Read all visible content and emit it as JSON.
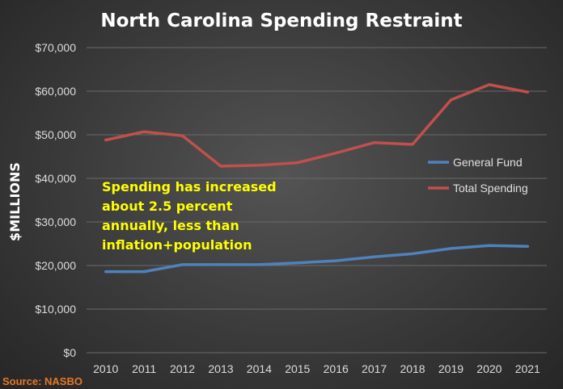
{
  "chart_data": {
    "type": "line",
    "title": "North Carolina Spending Restraint",
    "ylabel": "$MILLIONS",
    "xlabel": "",
    "x": [
      "2010",
      "2011",
      "2012",
      "2013",
      "2014",
      "2015",
      "2016",
      "2017",
      "2018",
      "2019",
      "2020",
      "2021"
    ],
    "ylim": [
      0,
      70000
    ],
    "yticks": [
      0,
      10000,
      20000,
      30000,
      40000,
      50000,
      60000,
      70000
    ],
    "ytick_labels": [
      "$0",
      "$10,000",
      "$20,000",
      "$30,000",
      "$40,000",
      "$50,000",
      "$60,000",
      "$70,000"
    ],
    "grid": true,
    "legend_position": "right",
    "series": [
      {
        "name": "General Fund",
        "color": "#4f81bd",
        "values": [
          18600,
          18600,
          20200,
          20200,
          20200,
          20600,
          21100,
          22000,
          22700,
          23900,
          24600,
          24400
        ]
      },
      {
        "name": "Total Spending",
        "color": "#c0504d",
        "values": [
          48800,
          50700,
          49800,
          42800,
          43000,
          43600,
          45800,
          48200,
          47800,
          58000,
          61500,
          59800
        ]
      }
    ],
    "annotation": [
      "Spending has increased",
      "about 2.5 percent",
      "annually, less than",
      "inflation+population"
    ],
    "source": "Source: NASBO"
  }
}
